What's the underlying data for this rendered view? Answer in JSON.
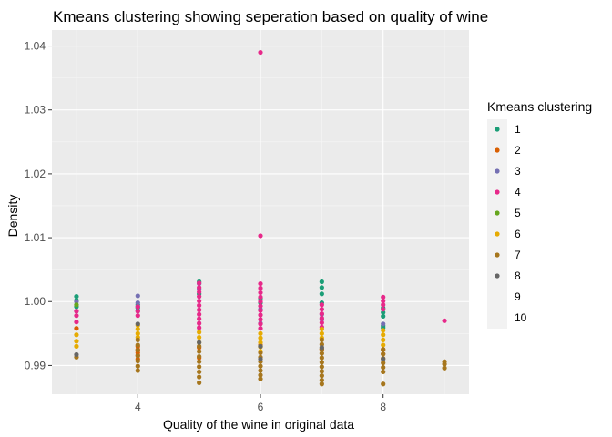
{
  "chart_data": {
    "type": "scatter",
    "title": "Kmeans clustering showing seperation based on quality of wine",
    "xlabel": "Quality of the wine in original data",
    "ylabel": "Density",
    "xlim": [
      2.6,
      9.4
    ],
    "ylim": [
      0.9855,
      1.0425
    ],
    "x_ticks": [
      4,
      6,
      8
    ],
    "y_ticks": [
      0.99,
      1.0,
      1.01,
      1.02,
      1.03,
      1.04
    ],
    "y_tick_labels": [
      "0.99",
      "1.00",
      "1.01",
      "1.02",
      "1.03",
      "1.04"
    ],
    "grid": true,
    "legend": {
      "title": "Kmeans clustering",
      "placement": "right",
      "entries": [
        "1",
        "2",
        "3",
        "4",
        "5",
        "6",
        "7",
        "8",
        "9",
        "10"
      ]
    },
    "series": [
      {
        "name": "1",
        "color": "#1b9e77",
        "points": [
          [
            3,
            1.0008
          ],
          [
            3,
            1.0002
          ],
          [
            3,
            0.9992
          ],
          [
            4,
            0.9995
          ],
          [
            4,
            0.999
          ],
          [
            5,
            1.0031
          ],
          [
            5,
            1.0012
          ],
          [
            6,
            1.0005
          ],
          [
            6,
            0.9998
          ],
          [
            7,
            1.0031
          ],
          [
            7,
            1.0022
          ],
          [
            7,
            1.0012
          ],
          [
            7,
            0.9998
          ],
          [
            8,
            0.999
          ],
          [
            8,
            0.9983
          ],
          [
            8,
            0.9977
          ],
          [
            8,
            0.9962
          ],
          [
            8,
            0.9959
          ]
        ]
      },
      {
        "name": "2",
        "color": "#d95f02",
        "points": [
          [
            3,
            0.9958
          ],
          [
            4,
            0.993
          ],
          [
            4,
            0.9925
          ],
          [
            4,
            0.992
          ],
          [
            4,
            0.9916
          ],
          [
            4,
            0.991
          ],
          [
            5,
            0.9928
          ],
          [
            5,
            0.9912
          ],
          [
            6,
            0.9932
          ],
          [
            7,
            0.9925
          ],
          [
            8,
            0.9925
          ],
          [
            8,
            0.9918
          ]
        ]
      },
      {
        "name": "3",
        "color": "#7570b3",
        "points": [
          [
            3,
            1.0
          ],
          [
            3,
            0.9985
          ],
          [
            4,
            1.0009
          ],
          [
            4,
            0.9998
          ],
          [
            4,
            0.9992
          ],
          [
            4,
            0.9985
          ],
          [
            5,
            1.0028
          ],
          [
            5,
            1.002
          ],
          [
            6,
            0.9988
          ],
          [
            6,
            0.9966
          ],
          [
            7,
            0.998
          ],
          [
            7,
            0.9972
          ],
          [
            8,
            0.9965
          ]
        ]
      },
      {
        "name": "4",
        "color": "#e7298a",
        "points": [
          [
            3,
            0.9985
          ],
          [
            3,
            0.9978
          ],
          [
            3,
            0.9968
          ],
          [
            4,
            0.9992
          ],
          [
            4,
            0.9985
          ],
          [
            4,
            0.9978
          ],
          [
            5,
            1.0029
          ],
          [
            5,
            1.0022
          ],
          [
            5,
            1.0015
          ],
          [
            5,
            1.0008
          ],
          [
            5,
            1.0001
          ],
          [
            5,
            0.9994
          ],
          [
            5,
            0.9987
          ],
          [
            5,
            0.998
          ],
          [
            5,
            0.9973
          ],
          [
            5,
            0.9966
          ],
          [
            5,
            0.9959
          ],
          [
            6,
            1.039
          ],
          [
            6,
            1.0103
          ],
          [
            6,
            1.0028
          ],
          [
            6,
            1.0021
          ],
          [
            6,
            1.0014
          ],
          [
            6,
            1.0007
          ],
          [
            6,
            1.0
          ],
          [
            6,
            0.9993
          ],
          [
            6,
            0.9986
          ],
          [
            6,
            0.9979
          ],
          [
            6,
            0.9972
          ],
          [
            6,
            0.9965
          ],
          [
            6,
            0.9958
          ],
          [
            7,
            0.9995
          ],
          [
            7,
            0.9988
          ],
          [
            7,
            0.9981
          ],
          [
            7,
            0.9974
          ],
          [
            7,
            0.9967
          ],
          [
            7,
            0.996
          ],
          [
            8,
            1.0007
          ],
          [
            8,
            1.0001
          ],
          [
            8,
            0.9995
          ],
          [
            8,
            0.9988
          ],
          [
            9,
            0.997
          ]
        ]
      },
      {
        "name": "5",
        "color": "#66a61e",
        "points": [
          [
            3,
            0.9995
          ],
          [
            6,
            0.993
          ]
        ]
      },
      {
        "name": "6",
        "color": "#e6ab02",
        "points": [
          [
            3,
            0.9948
          ],
          [
            3,
            0.9938
          ],
          [
            3,
            0.993
          ],
          [
            4,
            0.9963
          ],
          [
            4,
            0.9957
          ],
          [
            4,
            0.995
          ],
          [
            4,
            0.9944
          ],
          [
            5,
            0.9952
          ],
          [
            5,
            0.9944
          ],
          [
            5,
            0.9936
          ],
          [
            6,
            0.995
          ],
          [
            6,
            0.9943
          ],
          [
            6,
            0.9936
          ],
          [
            6,
            0.9929
          ],
          [
            6,
            0.9922
          ],
          [
            7,
            0.9957
          ],
          [
            7,
            0.995
          ],
          [
            7,
            0.9943
          ],
          [
            8,
            0.9955
          ],
          [
            8,
            0.9948
          ],
          [
            8,
            0.994
          ],
          [
            8,
            0.9932
          ]
        ]
      },
      {
        "name": "7",
        "color": "#a6761d",
        "points": [
          [
            3,
            0.9913
          ],
          [
            4,
            0.994
          ],
          [
            4,
            0.9932
          ],
          [
            4,
            0.9924
          ],
          [
            4,
            0.9915
          ],
          [
            4,
            0.9907
          ],
          [
            4,
            0.9899
          ],
          [
            4,
            0.9892
          ],
          [
            5,
            0.993
          ],
          [
            5,
            0.9922
          ],
          [
            5,
            0.9914
          ],
          [
            5,
            0.9906
          ],
          [
            5,
            0.9898
          ],
          [
            5,
            0.989
          ],
          [
            5,
            0.9882
          ],
          [
            5,
            0.9873
          ],
          [
            6,
            0.992
          ],
          [
            6,
            0.9913
          ],
          [
            6,
            0.9906
          ],
          [
            6,
            0.9899
          ],
          [
            6,
            0.9892
          ],
          [
            6,
            0.9885
          ],
          [
            6,
            0.9879
          ],
          [
            7,
            0.994
          ],
          [
            7,
            0.9933
          ],
          [
            7,
            0.9926
          ],
          [
            7,
            0.9919
          ],
          [
            7,
            0.9912
          ],
          [
            7,
            0.9905
          ],
          [
            7,
            0.9898
          ],
          [
            7,
            0.9891
          ],
          [
            7,
            0.9884
          ],
          [
            7,
            0.9877
          ],
          [
            7,
            0.9871
          ],
          [
            8,
            0.9925
          ],
          [
            8,
            0.9918
          ],
          [
            8,
            0.9911
          ],
          [
            8,
            0.9904
          ],
          [
            8,
            0.9897
          ],
          [
            8,
            0.989
          ],
          [
            8,
            0.9871
          ],
          [
            9,
            0.9906
          ],
          [
            9,
            0.9902
          ],
          [
            9,
            0.9896
          ]
        ]
      },
      {
        "name": "8",
        "color": "#666666",
        "points": [
          [
            3,
            0.9917
          ],
          [
            4,
            0.9965
          ],
          [
            5,
            0.9936
          ],
          [
            6,
            0.993
          ],
          [
            6,
            0.991
          ],
          [
            7,
            0.9928
          ],
          [
            8,
            0.991
          ]
        ]
      },
      {
        "name": "9",
        "color": "#f0f0f0",
        "points": []
      },
      {
        "name": "10",
        "color": "#f0f0f0",
        "points": []
      }
    ]
  }
}
